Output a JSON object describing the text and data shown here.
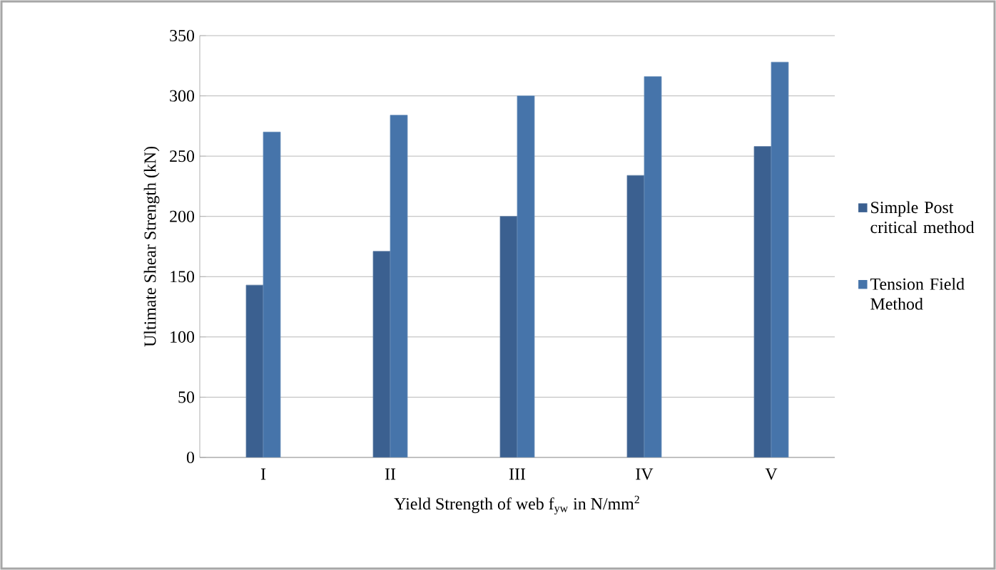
{
  "chart_data": {
    "type": "bar",
    "xlabel": "Yield Strength of web f$_{yw}$ in N/mm$^{2}$",
    "ylabel": "Ultimate Shear Strength  (kN)",
    "categories": [
      "I",
      "II",
      "III",
      "IV",
      "V"
    ],
    "series": [
      {
        "name": "Simple Post critical method",
        "color": "#3b6090",
        "values": [
          143,
          171,
          200,
          234,
          258
        ]
      },
      {
        "name": "Tension Field Method",
        "color": "#4674aa",
        "values": [
          270,
          284,
          300,
          316,
          328
        ]
      }
    ],
    "ylim": [
      0,
      350
    ],
    "yticks": [
      0,
      50,
      100,
      150,
      200,
      250,
      300,
      350
    ],
    "grid": "y",
    "legend": "right"
  }
}
